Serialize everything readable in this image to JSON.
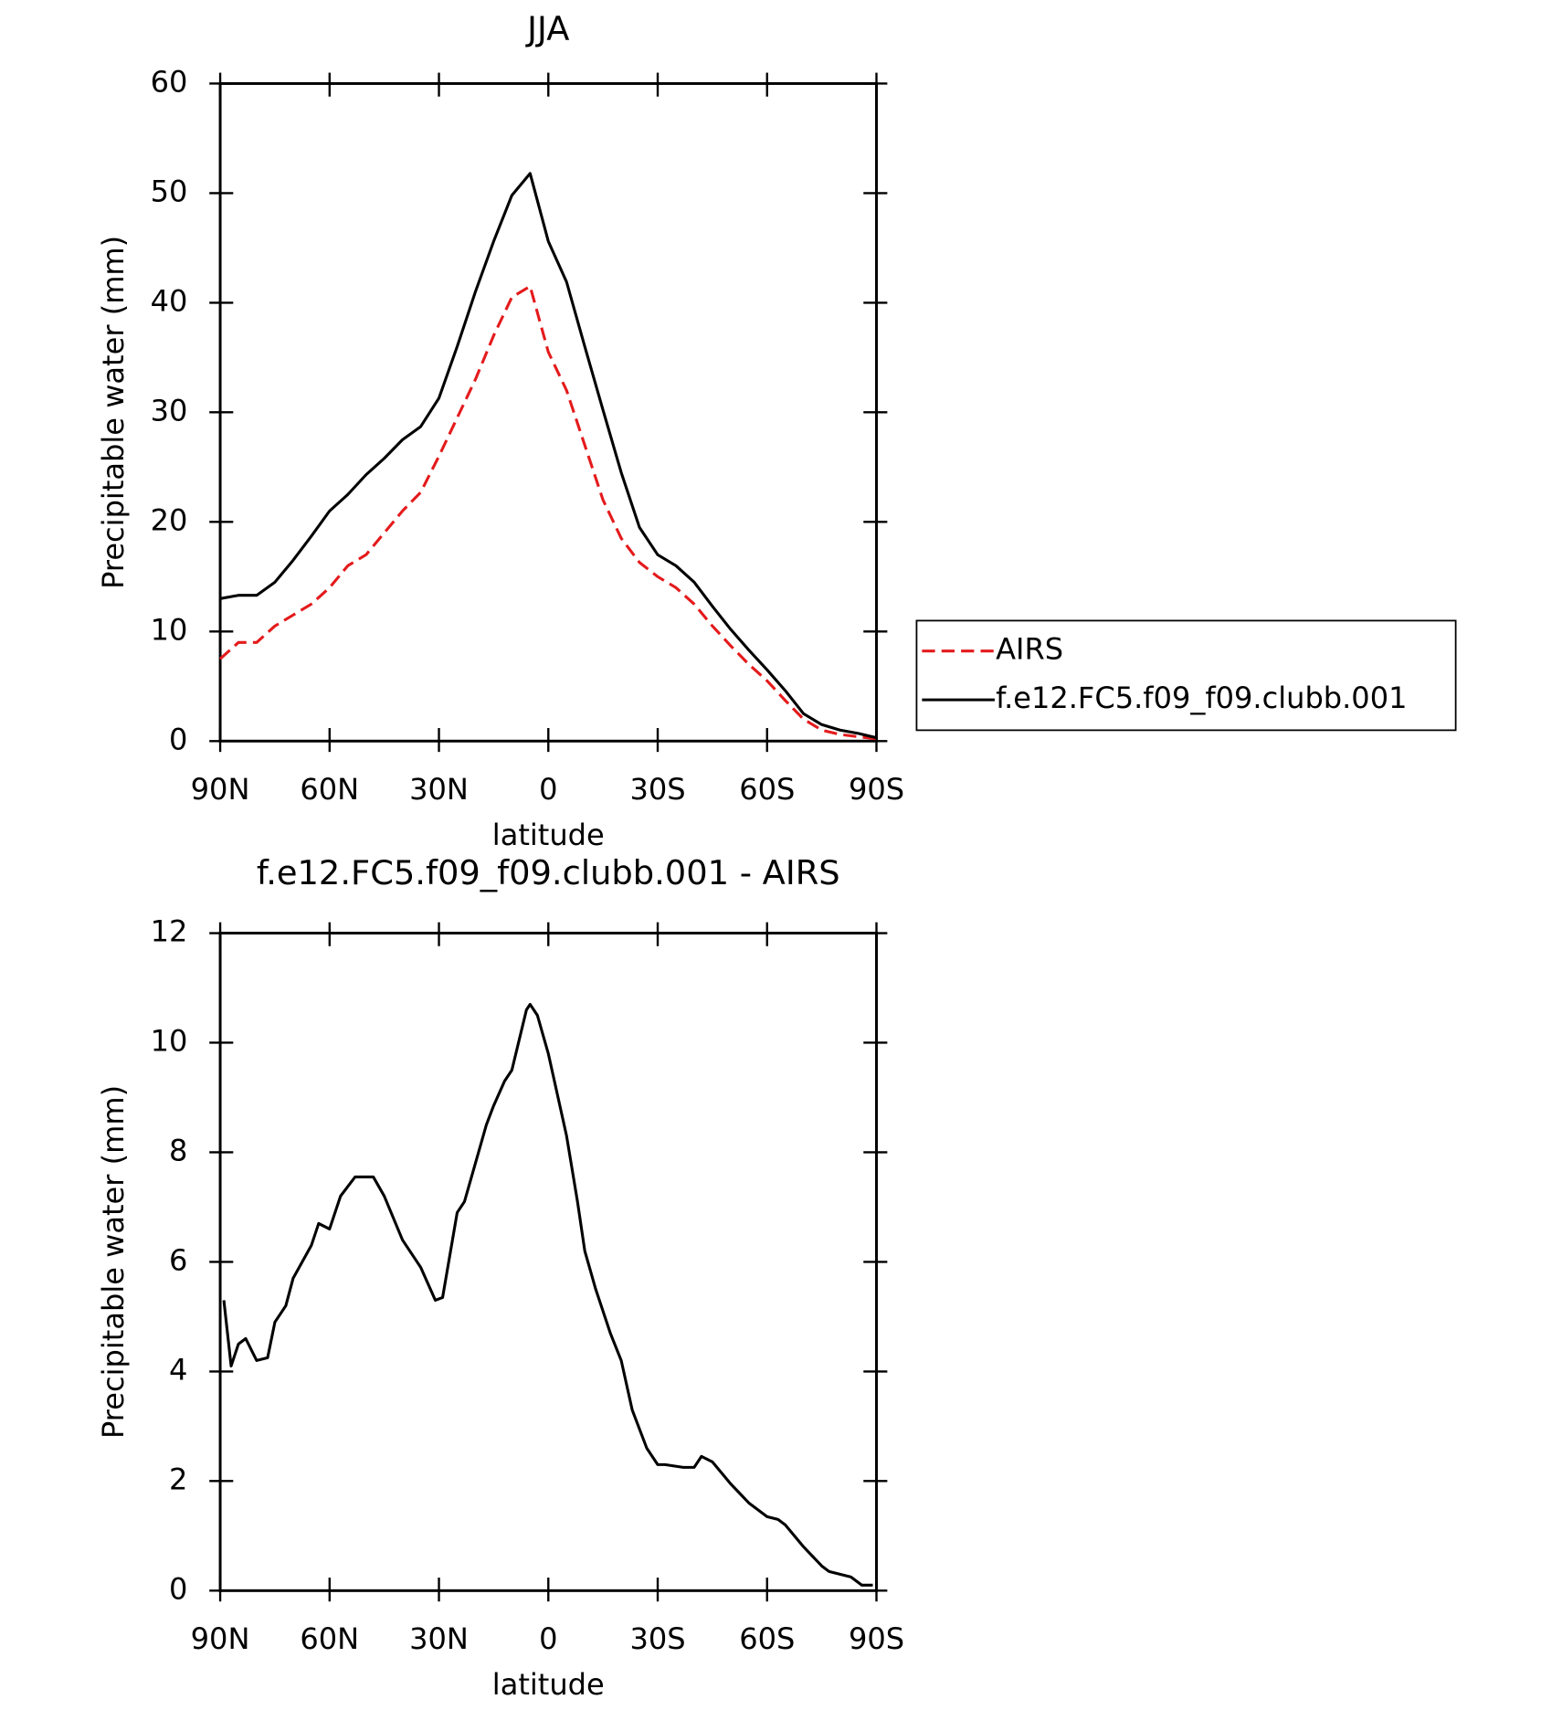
{
  "chart_data": [
    {
      "type": "line",
      "title": "JJA",
      "xlabel": "latitude",
      "ylabel": "Precipitable water (mm)",
      "x": [
        90,
        85,
        80,
        75,
        70,
        65,
        60,
        55,
        50,
        45,
        40,
        35,
        30,
        25,
        20,
        15,
        10,
        5,
        0,
        -5,
        -10,
        -15,
        -20,
        -25,
        -30,
        -35,
        -40,
        -45,
        -50,
        -55,
        -60,
        -65,
        -70,
        -75,
        -80,
        -85,
        -90
      ],
      "series": [
        {
          "name": "AIRS",
          "color": "#e41a1c",
          "style": "dashed",
          "values": [
            7.5,
            9,
            9,
            10.5,
            11.5,
            12.5,
            14,
            16,
            17,
            19,
            21,
            22.7,
            26,
            29.5,
            33,
            37,
            40.5,
            41.5,
            35.5,
            32,
            27,
            22,
            18.5,
            16.3,
            15,
            14,
            12.5,
            10.5,
            8.7,
            7,
            5.5,
            3.7,
            2,
            1,
            0.6,
            0.4,
            0.2
          ]
        },
        {
          "name": "f.e12.FC5.f09_f09.clubb.001",
          "color": "#000000",
          "style": "solid",
          "values": [
            13.0,
            13.3,
            13.3,
            14.5,
            16.5,
            18.7,
            21,
            22.5,
            24.3,
            25.8,
            27.5,
            28.7,
            31.3,
            36,
            41,
            45.6,
            49.8,
            51.8,
            45.6,
            41.9,
            36,
            30.2,
            24.5,
            19.5,
            17,
            16,
            14.5,
            12.3,
            10.2,
            8.3,
            6.5,
            4.6,
            2.5,
            1.5,
            1.0,
            0.7,
            0.3
          ]
        }
      ],
      "xlim": [
        90,
        -90
      ],
      "xticks": [
        {
          "value": 90,
          "label": "90N"
        },
        {
          "value": 60,
          "label": "60N"
        },
        {
          "value": 30,
          "label": "30N"
        },
        0,
        {
          "value": -30,
          "label": "30S"
        },
        {
          "value": -60,
          "label": "60S"
        },
        {
          "value": -90,
          "label": "90S"
        }
      ],
      "ylim": [
        0,
        60
      ],
      "yticks": [
        0,
        10,
        20,
        30,
        40,
        50,
        60
      ],
      "legend": "right"
    },
    {
      "type": "line",
      "title": "f.e12.FC5.f09_f09.clubb.001 - AIRS",
      "xlabel": "latitude",
      "ylabel": "Precipitable water (mm)",
      "x": [
        89,
        87,
        85,
        83,
        80,
        77,
        75,
        72,
        70,
        65,
        63,
        60,
        57,
        53,
        48,
        45,
        40,
        35,
        31,
        29,
        25,
        23,
        20,
        17,
        15,
        12,
        10,
        6,
        5,
        3,
        0,
        -5,
        -8,
        -10,
        -13,
        -17,
        -20,
        -23,
        -27,
        -30,
        -32,
        -37,
        -40,
        -42,
        -45,
        -50,
        -55,
        -60,
        -63,
        -65,
        -70,
        -75,
        -77,
        -80,
        -83,
        -86,
        -89
      ],
      "series": [
        {
          "color": "#000000",
          "style": "solid",
          "values": [
            5.3,
            4.1,
            4.5,
            4.6,
            4.2,
            4.25,
            4.9,
            5.2,
            5.7,
            6.3,
            6.7,
            6.6,
            7.2,
            7.55,
            7.55,
            7.2,
            6.4,
            5.9,
            5.3,
            5.35,
            6.9,
            7.1,
            7.8,
            8.5,
            8.85,
            9.3,
            9.5,
            10.6,
            10.7,
            10.5,
            9.8,
            8.3,
            7.1,
            6.2,
            5.5,
            4.7,
            4.2,
            3.3,
            2.6,
            2.3,
            2.3,
            2.25,
            2.25,
            2.45,
            2.35,
            1.95,
            1.6,
            1.35,
            1.3,
            1.2,
            0.8,
            0.45,
            0.35,
            0.3,
            0.25,
            0.1,
            0.1
          ]
        }
      ],
      "xlim": [
        90,
        -90
      ],
      "xticks": [
        {
          "value": 90,
          "label": "90N"
        },
        {
          "value": 60,
          "label": "60N"
        },
        {
          "value": 30,
          "label": "30N"
        },
        0,
        {
          "value": -30,
          "label": "30S"
        },
        {
          "value": -60,
          "label": "60S"
        },
        {
          "value": -90,
          "label": "90S"
        }
      ],
      "ylim": [
        0,
        12
      ],
      "yticks": [
        0,
        2,
        4,
        6,
        8,
        10,
        12
      ]
    }
  ]
}
